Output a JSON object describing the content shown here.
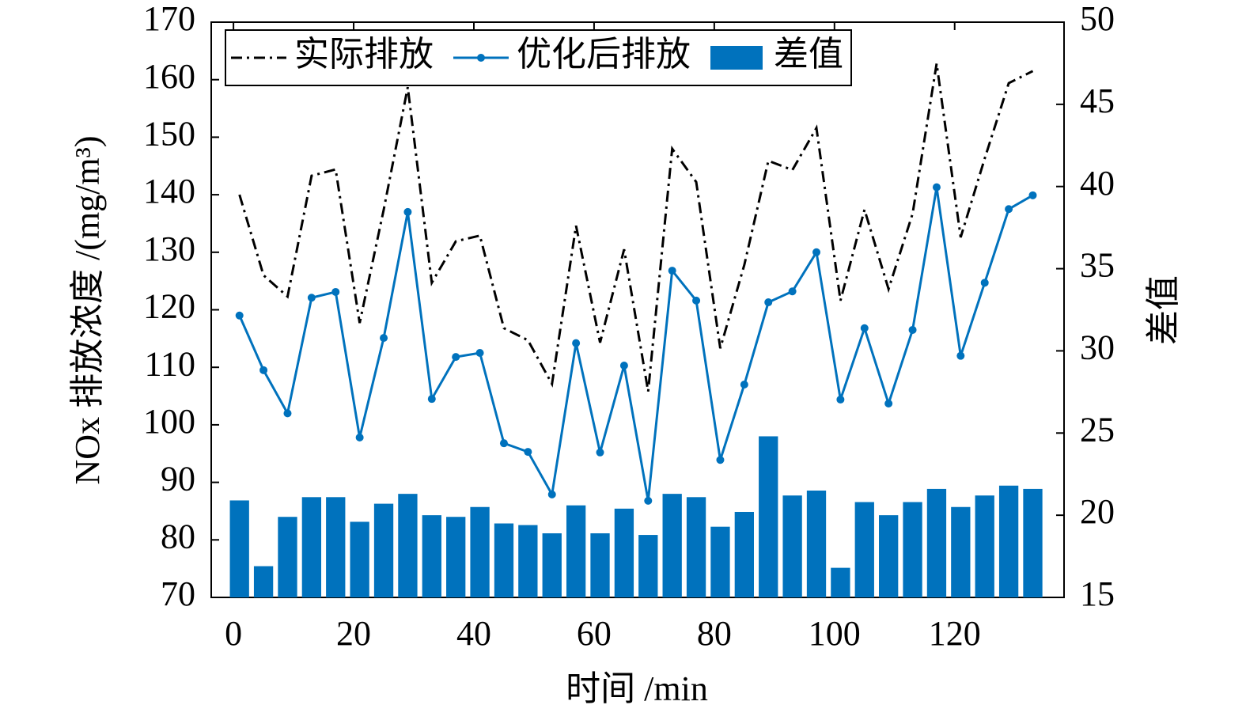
{
  "chart_data": {
    "type": "combo",
    "xlabel": "时间 /min",
    "ylabel": "NOx 排放浓度 /(mg/m³)",
    "y2label": "差值",
    "x": [
      1,
      5,
      9,
      13,
      17,
      21,
      25,
      29,
      33,
      37,
      41,
      45,
      49,
      53,
      57,
      61,
      65,
      69,
      73,
      77,
      81,
      85,
      89,
      93,
      97,
      101,
      105,
      109,
      113,
      117,
      121,
      125,
      129,
      133
    ],
    "series": [
      {
        "name": "实际排放",
        "type": "line",
        "style": "dashdot",
        "color": "#000000",
        "axis": "y",
        "values": [
          140,
          126,
          122.3,
          143.3,
          144.4,
          117.7,
          137.4,
          158.7,
          124.7,
          131.9,
          132.9,
          116.8,
          114.7,
          107.1,
          134.6,
          114.3,
          130.5,
          105.8,
          148,
          142.2,
          113.3,
          127.8,
          145.9,
          144.3,
          151.6,
          121.6,
          137.4,
          123.6,
          136.7,
          162.8,
          132.6,
          146.3,
          159.4,
          161.5
        ]
      },
      {
        "name": "优化后排放",
        "type": "line",
        "style": "solid",
        "marker": "o",
        "color": "#0072bd",
        "axis": "y",
        "values": [
          119,
          109.5,
          102,
          122.1,
          123.1,
          97.8,
          115.1,
          137,
          104.5,
          111.8,
          112.5,
          96.8,
          95.3,
          87.9,
          114.2,
          95.2,
          110.3,
          86.8,
          126.8,
          121.6,
          93.9,
          107,
          121.3,
          123.2,
          130,
          104.4,
          116.8,
          103.7,
          116.5,
          141.3,
          112,
          124.7,
          137.5,
          139.9
        ]
      },
      {
        "name": "差值",
        "type": "bar",
        "color": "#0072bd",
        "axis": "y2",
        "values": [
          20.9,
          16.9,
          19.9,
          21.1,
          21.1,
          19.6,
          20.7,
          21.3,
          20,
          19.9,
          20.5,
          19.5,
          19.4,
          18.9,
          20.6,
          18.9,
          20.4,
          18.8,
          21.3,
          21.1,
          19.3,
          20.2,
          24.8,
          21.2,
          21.5,
          16.8,
          20.8,
          20,
          20.8,
          21.6,
          20.5,
          21.2,
          21.8,
          21.6
        ]
      }
    ],
    "xlim": [
      -3.7,
      138.2
    ],
    "xticks": [
      0,
      20,
      40,
      60,
      80,
      100,
      120
    ],
    "ylim": [
      70,
      170
    ],
    "yticks": [
      70,
      80,
      90,
      100,
      110,
      120,
      130,
      140,
      150,
      160,
      170
    ],
    "y2lim": [
      15,
      50
    ],
    "y2ticks": [
      15,
      20,
      25,
      30,
      35,
      40,
      45,
      50
    ],
    "legend": "upper left",
    "grid": false
  }
}
